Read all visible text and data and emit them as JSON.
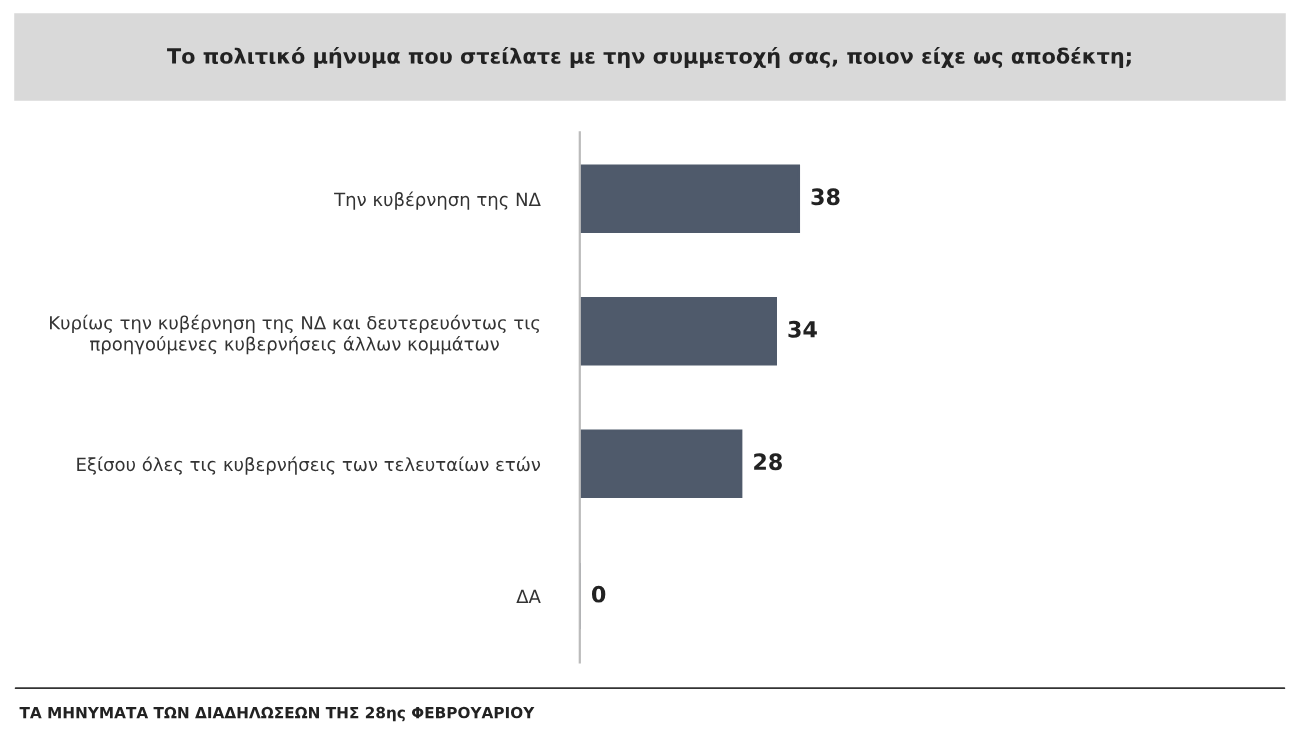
{
  "chart_data": {
    "type": "bar",
    "orientation": "horizontal",
    "title": "Το πολιτικό μήνυμα που στείλατε με την συμμετοχή σας, ποιον είχε ως αποδέκτη;",
    "categories": [
      "Την κυβέρνηση της ΝΔ",
      "Κυρίως την κυβέρνηση της ΝΔ και δευτερευόντως τις\nπροηγούμενες κυβερνήσεις άλλων κομμάτων",
      "Εξίσου όλες τις κυβερνήσεις των τελευταίων ετών",
      "ΔΑ"
    ],
    "values": [
      38,
      34,
      28,
      0
    ],
    "color": "#4f5a6b",
    "data_labels": true,
    "tick_labels": "y",
    "grid": false,
    "legend": false,
    "annotations": [
      "ΤΑ ΜΗΝΥΜΑΤΑ ΤΩΝ ΔΙΑΔΗΛΩΣΕΩΝ ΤΗΣ 28ης ΦΕΒΡΟΥΑΡΙΟΥ"
    ]
  }
}
